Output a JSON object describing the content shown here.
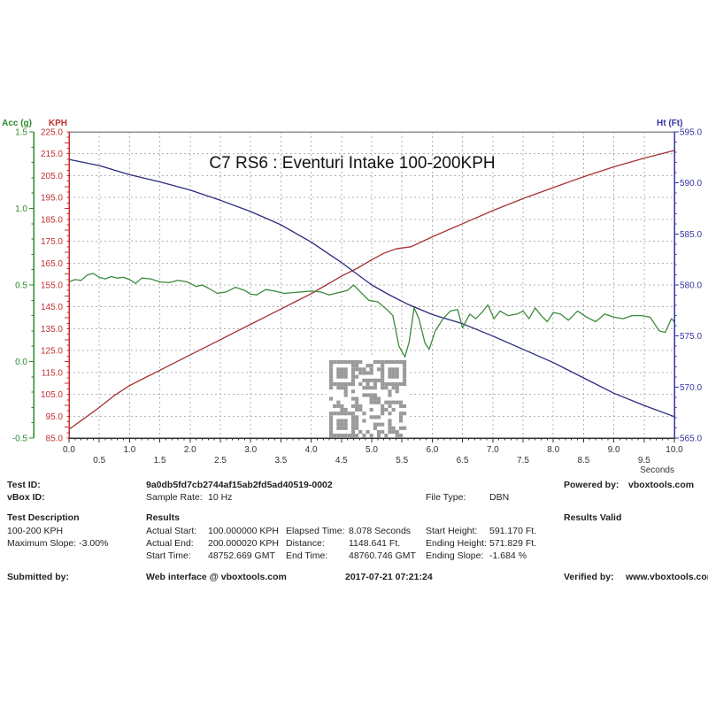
{
  "chart_data": {
    "type": "line",
    "title": "C7 RS6 : Eventuri Intake 100-200KPH",
    "xlabel": "Seconds",
    "x_range": [
      0,
      10
    ],
    "x_major": 0.5,
    "x_tick_labels_row1": [
      "0.0",
      "1.0",
      "2.0",
      "3.0",
      "4.0",
      "5.0",
      "6.0",
      "7.0",
      "8.0",
      "9.0",
      "10.0"
    ],
    "x_tick_labels_row2": [
      "0.5",
      "1.5",
      "2.5",
      "3.5",
      "4.5",
      "5.5",
      "6.5",
      "7.5",
      "8.5",
      "9.5"
    ],
    "grid": true,
    "axes": [
      {
        "id": "acc",
        "name": "L Acc (g)",
        "side": "left-outer",
        "range": [
          -0.5,
          1.5
        ],
        "major": 0.5,
        "minor": 0.1,
        "color": "#2f8a2f",
        "tick_labels": [
          "1.5",
          "1.0",
          "0.5",
          "0.0",
          "-0.5"
        ]
      },
      {
        "id": "kph",
        "name": "KPH",
        "side": "left",
        "range": [
          85,
          225
        ],
        "major": 10,
        "minor": 2.5,
        "color": "#c03030",
        "tick_labels": [
          "225.0",
          "215.0",
          "205.0",
          "195.0",
          "185.0",
          "175.0",
          "165.0",
          "155.0",
          "145.0",
          "135.0",
          "125.0",
          "115.0",
          "105.0",
          "95.0",
          "85.0"
        ]
      },
      {
        "id": "ht",
        "name": "Ht (Ft)",
        "side": "right",
        "range": [
          565,
          595
        ],
        "major": 5,
        "minor": 1,
        "color": "#3434a2",
        "tick_labels": [
          "595.0",
          "590.0",
          "585.0",
          "580.0",
          "575.0",
          "570.0",
          "565.0"
        ]
      }
    ],
    "series": [
      {
        "name": "speed-kph",
        "axis": "kph",
        "color": "#a53131",
        "points": [
          [
            0,
            89
          ],
          [
            0.25,
            94
          ],
          [
            0.5,
            99
          ],
          [
            0.75,
            104.5
          ],
          [
            1,
            109
          ],
          [
            1.25,
            112.5
          ],
          [
            1.5,
            116
          ],
          [
            1.75,
            119.5
          ],
          [
            2,
            123
          ],
          [
            2.25,
            126.5
          ],
          [
            2.5,
            130
          ],
          [
            2.75,
            133.5
          ],
          [
            3,
            137
          ],
          [
            3.25,
            140.5
          ],
          [
            3.5,
            144
          ],
          [
            3.75,
            147.5
          ],
          [
            4,
            151
          ],
          [
            4.25,
            155
          ],
          [
            4.5,
            159
          ],
          [
            4.75,
            162.5
          ],
          [
            5,
            166.5
          ],
          [
            5.2,
            169.5
          ],
          [
            5.4,
            171.5
          ],
          [
            5.65,
            172.5
          ],
          [
            6,
            177
          ],
          [
            6.5,
            183
          ],
          [
            7,
            189
          ],
          [
            7.5,
            194.5
          ],
          [
            8,
            199.5
          ],
          [
            8.5,
            204.5
          ],
          [
            9,
            209
          ],
          [
            9.5,
            213
          ],
          [
            10,
            216.5
          ]
        ]
      },
      {
        "name": "height-ft",
        "axis": "ht",
        "color": "#2a2a80",
        "points": [
          [
            0,
            592.3
          ],
          [
            0.5,
            591.7
          ],
          [
            1,
            590.8
          ],
          [
            1.5,
            590.1
          ],
          [
            2,
            589.3
          ],
          [
            2.5,
            588.3
          ],
          [
            3,
            587.2
          ],
          [
            3.5,
            585.9
          ],
          [
            4,
            584.2
          ],
          [
            4.5,
            582.2
          ],
          [
            5,
            580.0
          ],
          [
            5.3,
            579.0
          ],
          [
            5.6,
            578.1
          ],
          [
            6,
            577.1
          ],
          [
            6.5,
            576.2
          ],
          [
            7,
            575.0
          ],
          [
            7.5,
            573.7
          ],
          [
            8,
            572.4
          ],
          [
            8.5,
            570.9
          ],
          [
            9,
            569.4
          ],
          [
            9.5,
            568.2
          ],
          [
            10,
            567.1
          ]
        ]
      },
      {
        "name": "l-acc-g",
        "axis": "acc",
        "color": "#3c8a3c",
        "points": [
          [
            0,
            0.52
          ],
          [
            0.1,
            0.535
          ],
          [
            0.2,
            0.53
          ],
          [
            0.3,
            0.565
          ],
          [
            0.4,
            0.575
          ],
          [
            0.5,
            0.55
          ],
          [
            0.6,
            0.54
          ],
          [
            0.7,
            0.555
          ],
          [
            0.8,
            0.545
          ],
          [
            0.9,
            0.55
          ],
          [
            1.0,
            0.535
          ],
          [
            1.1,
            0.51
          ],
          [
            1.2,
            0.545
          ],
          [
            1.35,
            0.54
          ],
          [
            1.5,
            0.52
          ],
          [
            1.65,
            0.515
          ],
          [
            1.8,
            0.53
          ],
          [
            1.95,
            0.52
          ],
          [
            2.1,
            0.49
          ],
          [
            2.2,
            0.5
          ],
          [
            2.3,
            0.48
          ],
          [
            2.45,
            0.445
          ],
          [
            2.6,
            0.455
          ],
          [
            2.75,
            0.485
          ],
          [
            2.9,
            0.465
          ],
          [
            3.0,
            0.44
          ],
          [
            3.1,
            0.435
          ],
          [
            3.25,
            0.47
          ],
          [
            3.4,
            0.46
          ],
          [
            3.55,
            0.445
          ],
          [
            3.7,
            0.45
          ],
          [
            3.85,
            0.455
          ],
          [
            4.0,
            0.46
          ],
          [
            4.15,
            0.455
          ],
          [
            4.3,
            0.435
          ],
          [
            4.45,
            0.45
          ],
          [
            4.6,
            0.465
          ],
          [
            4.7,
            0.5
          ],
          [
            4.8,
            0.46
          ],
          [
            4.95,
            0.4
          ],
          [
            5.1,
            0.39
          ],
          [
            5.25,
            0.34
          ],
          [
            5.35,
            0.3
          ],
          [
            5.45,
            0.1
          ],
          [
            5.55,
            0.03
          ],
          [
            5.62,
            0.13
          ],
          [
            5.7,
            0.35
          ],
          [
            5.78,
            0.28
          ],
          [
            5.88,
            0.12
          ],
          [
            5.95,
            0.08
          ],
          [
            6.05,
            0.2
          ],
          [
            6.18,
            0.28
          ],
          [
            6.3,
            0.33
          ],
          [
            6.42,
            0.34
          ],
          [
            6.5,
            0.22
          ],
          [
            6.62,
            0.31
          ],
          [
            6.72,
            0.28
          ],
          [
            6.82,
            0.32
          ],
          [
            6.92,
            0.37
          ],
          [
            7.02,
            0.28
          ],
          [
            7.12,
            0.33
          ],
          [
            7.25,
            0.3
          ],
          [
            7.4,
            0.31
          ],
          [
            7.5,
            0.33
          ],
          [
            7.6,
            0.28
          ],
          [
            7.7,
            0.35
          ],
          [
            7.8,
            0.3
          ],
          [
            7.9,
            0.26
          ],
          [
            8.0,
            0.32
          ],
          [
            8.12,
            0.31
          ],
          [
            8.25,
            0.27
          ],
          [
            8.4,
            0.33
          ],
          [
            8.55,
            0.29
          ],
          [
            8.7,
            0.26
          ],
          [
            8.85,
            0.31
          ],
          [
            9.0,
            0.29
          ],
          [
            9.15,
            0.28
          ],
          [
            9.3,
            0.3
          ],
          [
            9.45,
            0.3
          ],
          [
            9.6,
            0.29
          ],
          [
            9.75,
            0.2
          ],
          [
            9.85,
            0.19
          ],
          [
            9.95,
            0.28
          ],
          [
            10,
            0.26
          ]
        ]
      }
    ],
    "qr_code_present": true
  },
  "info": {
    "test_id_label": "Test ID:",
    "test_id": "9a0db5fd7cb2744af15ab2fd5ad40519-0002",
    "vbox_id_label": "vBox ID:",
    "sample_rate_label": "Sample Rate:",
    "sample_rate": "10 Hz",
    "file_type_label": "File Type:",
    "file_type": "DBN",
    "powered_by_label": "Powered by:",
    "powered_by": "vboxtools.com",
    "test_description_label": "Test Description",
    "test_description_line1": "100-200 KPH",
    "test_description_line2": "Maximum Slope:  -3.00%",
    "results_label": "Results",
    "results_valid": "Results Valid",
    "actual_start_label": "Actual Start:",
    "actual_start": "100.000000 KPH",
    "actual_end_label": "Actual End:",
    "actual_end": "200.000020 KPH",
    "start_time_label": "Start Time:",
    "start_time": "48752.669 GMT",
    "elapsed_time_label": "Elapsed Time:",
    "elapsed_time": "8.078 Seconds",
    "distance_label": "Distance:",
    "distance": "1148.641 Ft.",
    "end_time_label": "End Time:",
    "end_time": "48760.746 GMT",
    "start_height_label": "Start Height:",
    "start_height": "591.170 Ft.",
    "ending_height_label": "Ending Height:",
    "ending_height": "571.829 Ft.",
    "ending_slope_label": "Ending Slope:",
    "ending_slope": "-1.684 %",
    "submitted_by_label": "Submitted by:",
    "submitted_by": "Web interface @ vboxtools.com",
    "timestamp": "2017-07-21 07:21:24",
    "verified_by_label": "Verified by:",
    "verified_by": "www.vboxtools.com"
  },
  "colors": {
    "value_blue": "#4747ad",
    "grid": "#b3b3b3",
    "qr_gray": "#9a9a9a"
  }
}
